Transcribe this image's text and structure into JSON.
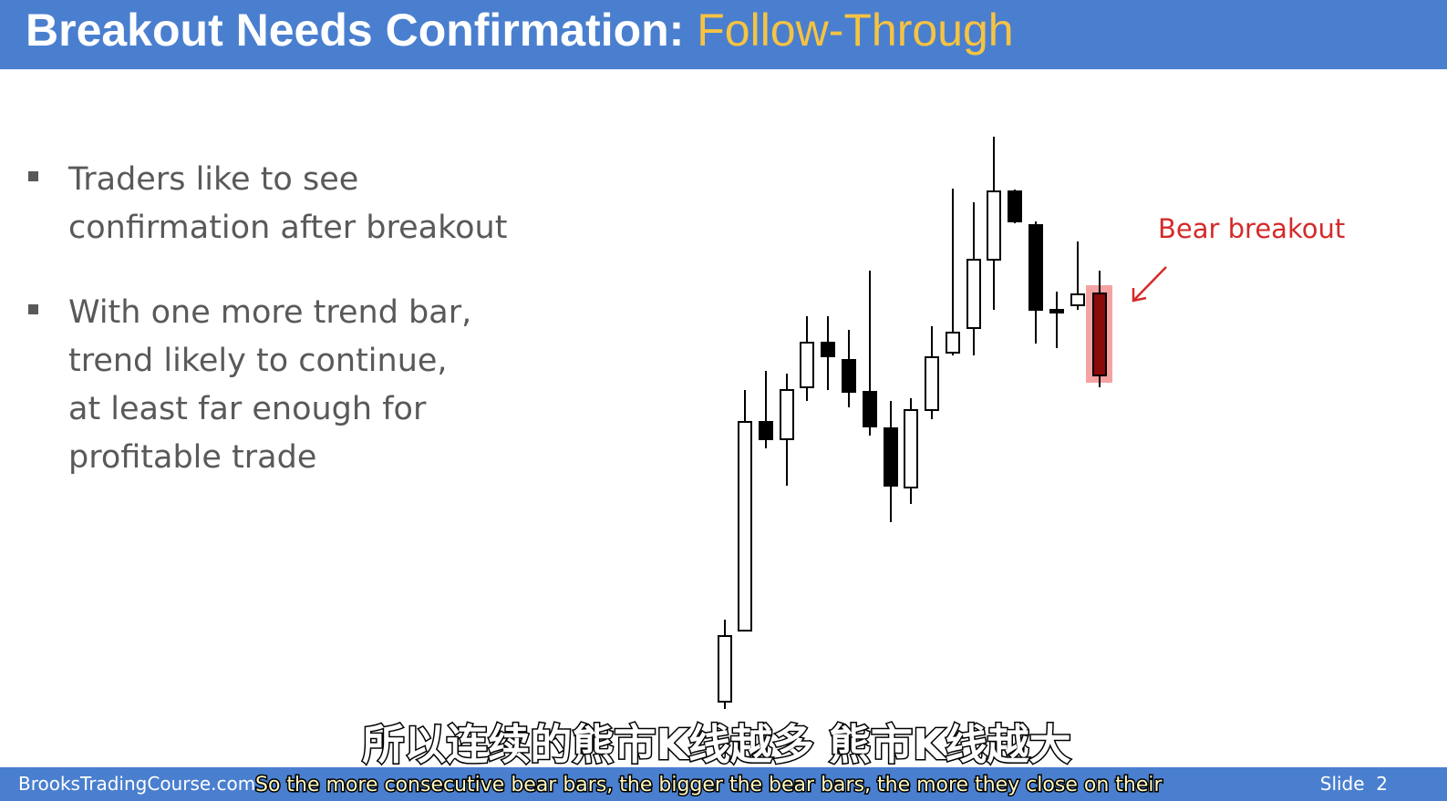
{
  "header": {
    "title": "Breakout Needs Confirmation:",
    "highlight": "Follow-Through"
  },
  "bullets": [
    {
      "lines": [
        "Traders like to see",
        "confirmation after breakout"
      ]
    },
    {
      "lines": [
        "With one more trend bar,",
        "trend likely to continue,",
        "at least far enough for",
        "profitable trade"
      ]
    }
  ],
  "annotation": "Bear breakout",
  "subtitles": {
    "chinese": "所以连续的熊市K线越多 熊市K线越大",
    "english": "So the more consecutive bear bars, the bigger the bear bars, the more they close on their"
  },
  "footer": {
    "site": "BrooksTradingCourse.com",
    "slide": "Slide  2"
  }
}
